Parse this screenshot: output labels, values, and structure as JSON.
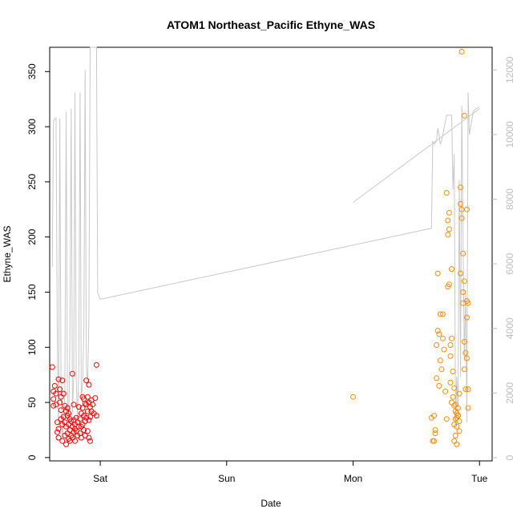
{
  "chart_data": {
    "type": "scatter",
    "title": "ATOM1 Northeast_Pacific Ethyne_WAS",
    "xlabel": "Date",
    "ylabel": "Ethyne_WAS",
    "xlim": [
      -0.4,
      3.1
    ],
    "ylim": [
      -3,
      372
    ],
    "y2lim": [
      -100,
      12700
    ],
    "x_ticks": [
      {
        "v": 0,
        "label": "Sat"
      },
      {
        "v": 1,
        "label": "Sun"
      },
      {
        "v": 2,
        "label": "Mon"
      },
      {
        "v": 3,
        "label": "Tue"
      }
    ],
    "y_ticks": [
      0,
      50,
      100,
      150,
      200,
      250,
      300,
      350
    ],
    "y2_ticks": [
      0,
      2000,
      4000,
      6000,
      8000,
      10000,
      12000
    ],
    "grid": false,
    "colors": {
      "series1": "#ff0000",
      "series2": "#ff8c00",
      "altitude": "#c8c8c8"
    },
    "series": [
      {
        "axis": "left",
        "color": "#ff0000",
        "points": [
          [
            -0.38,
            82
          ],
          [
            -0.37,
            60
          ],
          [
            -0.37,
            53
          ],
          [
            -0.37,
            47
          ],
          [
            -0.36,
            65
          ],
          [
            -0.35,
            58
          ],
          [
            -0.35,
            48
          ],
          [
            -0.34,
            32
          ],
          [
            -0.34,
            23
          ],
          [
            -0.33,
            71
          ],
          [
            -0.33,
            26
          ],
          [
            -0.33,
            18
          ],
          [
            -0.32,
            62
          ],
          [
            -0.32,
            50
          ],
          [
            -0.31,
            55
          ],
          [
            -0.31,
            43
          ],
          [
            -0.31,
            35
          ],
          [
            -0.3,
            70
          ],
          [
            -0.3,
            30
          ],
          [
            -0.3,
            15
          ],
          [
            -0.29,
            58
          ],
          [
            -0.29,
            37
          ],
          [
            -0.28,
            47
          ],
          [
            -0.28,
            32
          ],
          [
            -0.28,
            20
          ],
          [
            -0.27,
            42
          ],
          [
            -0.27,
            28
          ],
          [
            -0.27,
            12
          ],
          [
            -0.26,
            45
          ],
          [
            -0.26,
            38
          ],
          [
            -0.26,
            22
          ],
          [
            -0.25,
            40
          ],
          [
            -0.25,
            30
          ],
          [
            -0.25,
            17
          ],
          [
            -0.24,
            35
          ],
          [
            -0.24,
            25
          ],
          [
            -0.24,
            15
          ],
          [
            -0.23,
            33
          ],
          [
            -0.23,
            20
          ],
          [
            -0.22,
            76
          ],
          [
            -0.22,
            28
          ],
          [
            -0.22,
            18
          ],
          [
            -0.21,
            48
          ],
          [
            -0.21,
            34
          ],
          [
            -0.21,
            23
          ],
          [
            -0.2,
            30
          ],
          [
            -0.2,
            26
          ],
          [
            -0.2,
            15
          ],
          [
            -0.19,
            36
          ],
          [
            -0.19,
            24
          ],
          [
            -0.18,
            32
          ],
          [
            -0.18,
            20
          ],
          [
            -0.17,
            28
          ],
          [
            -0.17,
            46
          ],
          [
            -0.16,
            35
          ],
          [
            -0.16,
            22
          ],
          [
            -0.15,
            40
          ],
          [
            -0.15,
            28
          ],
          [
            -0.15,
            18
          ],
          [
            -0.14,
            55
          ],
          [
            -0.14,
            45
          ],
          [
            -0.14,
            30
          ],
          [
            -0.13,
            53
          ],
          [
            -0.13,
            38
          ],
          [
            -0.13,
            25
          ],
          [
            -0.12,
            49
          ],
          [
            -0.12,
            33
          ],
          [
            -0.12,
            20
          ],
          [
            -0.11,
            70
          ],
          [
            -0.11,
            48
          ],
          [
            -0.11,
            36
          ],
          [
            -0.1,
            55
          ],
          [
            -0.1,
            42
          ],
          [
            -0.1,
            24
          ],
          [
            -0.09,
            66
          ],
          [
            -0.09,
            50
          ],
          [
            -0.09,
            34
          ],
          [
            -0.09,
            18
          ],
          [
            -0.08,
            46
          ],
          [
            -0.08,
            37
          ],
          [
            -0.08,
            15
          ],
          [
            -0.07,
            52
          ],
          [
            -0.07,
            42
          ],
          [
            -0.06,
            48
          ],
          [
            -0.05,
            40
          ],
          [
            -0.04,
            54
          ],
          [
            -0.03,
            84
          ],
          [
            -0.03,
            38
          ]
        ]
      },
      {
        "axis": "left",
        "color": "#ff8c00",
        "points": [
          [
            2.0,
            55
          ],
          [
            2.62,
            36
          ],
          [
            2.63,
            15
          ],
          [
            2.64,
            38
          ],
          [
            2.64,
            15
          ],
          [
            2.65,
            25
          ],
          [
            2.65,
            22
          ],
          [
            2.66,
            72
          ],
          [
            2.66,
            102
          ],
          [
            2.67,
            167
          ],
          [
            2.67,
            115
          ],
          [
            2.68,
            112
          ],
          [
            2.68,
            65
          ],
          [
            2.69,
            130
          ],
          [
            2.69,
            88
          ],
          [
            2.7,
            80
          ],
          [
            2.71,
            130
          ],
          [
            2.71,
            108
          ],
          [
            2.72,
            98
          ],
          [
            2.73,
            60
          ],
          [
            2.74,
            35
          ],
          [
            2.74,
            240
          ],
          [
            2.75,
            215
          ],
          [
            2.75,
            202
          ],
          [
            2.75,
            155
          ],
          [
            2.76,
            222
          ],
          [
            2.76,
            207
          ],
          [
            2.76,
            157
          ],
          [
            2.77,
            102
          ],
          [
            2.77,
            92
          ],
          [
            2.77,
            68
          ],
          [
            2.78,
            171
          ],
          [
            2.78,
            108
          ],
          [
            2.78,
            50
          ],
          [
            2.79,
            78
          ],
          [
            2.79,
            55
          ],
          [
            2.8,
            63
          ],
          [
            2.8,
            47
          ],
          [
            2.8,
            30
          ],
          [
            2.81,
            35
          ],
          [
            2.81,
            42
          ],
          [
            2.81,
            20
          ],
          [
            2.82,
            40
          ],
          [
            2.82,
            36
          ],
          [
            2.82,
            28
          ],
          [
            2.83,
            45
          ],
          [
            2.83,
            38
          ],
          [
            2.84,
            33
          ],
          [
            2.84,
            24
          ],
          [
            2.85,
            245
          ],
          [
            2.85,
            230
          ],
          [
            2.85,
            167
          ],
          [
            2.86,
            368
          ],
          [
            2.86,
            225
          ],
          [
            2.86,
            217
          ],
          [
            2.87,
            185
          ],
          [
            2.87,
            150
          ],
          [
            2.87,
            140
          ],
          [
            2.88,
            310
          ],
          [
            2.88,
            160
          ],
          [
            2.88,
            80
          ],
          [
            2.89,
            95
          ],
          [
            2.89,
            62
          ],
          [
            2.9,
            225
          ],
          [
            2.9,
            142
          ],
          [
            2.9,
            127
          ],
          [
            2.9,
            90
          ],
          [
            2.91,
            140
          ],
          [
            2.91,
            62
          ],
          [
            2.91,
            45
          ],
          [
            2.88,
            105
          ],
          [
            2.84,
            58
          ],
          [
            2.8,
            15
          ],
          [
            2.82,
            12
          ],
          [
            2.83,
            38
          ],
          [
            2.81,
            48
          ]
        ]
      },
      {
        "axis": "right",
        "color": "#c8c8c8",
        "line": [
          [
            -0.38,
            5900
          ],
          [
            -0.37,
            10400
          ],
          [
            -0.36,
            10500
          ],
          [
            -0.35,
            10500
          ],
          [
            -0.34,
            3800
          ],
          [
            -0.33,
            900
          ],
          [
            -0.32,
            10500
          ],
          [
            -0.31,
            2000
          ],
          [
            -0.3,
            600
          ],
          [
            -0.29,
            1200
          ],
          [
            -0.28,
            2000
          ],
          [
            -0.27,
            10700
          ],
          [
            -0.26,
            2200
          ],
          [
            -0.25,
            900
          ],
          [
            -0.24,
            3600
          ],
          [
            -0.23,
            10800
          ],
          [
            -0.22,
            1400
          ],
          [
            -0.21,
            2500
          ],
          [
            -0.2,
            11300
          ],
          [
            -0.19,
            2400
          ],
          [
            -0.18,
            1200
          ],
          [
            -0.17,
            2700
          ],
          [
            -0.16,
            11300
          ],
          [
            -0.15,
            1800
          ],
          [
            -0.14,
            2300
          ],
          [
            -0.13,
            3900
          ],
          [
            -0.12,
            12000
          ],
          [
            -0.11,
            2800
          ],
          [
            -0.1,
            2300
          ],
          [
            -0.09,
            4200
          ],
          [
            -0.08,
            12700
          ],
          [
            -0.07,
            12700
          ],
          [
            -0.05,
            12700
          ],
          [
            -0.04,
            12700
          ],
          [
            -0.03,
            12700
          ],
          [
            -0.02,
            5100
          ],
          [
            0.0,
            4900
          ],
          [
            2.62,
            7100
          ],
          [
            2.63,
            9800
          ],
          [
            2.64,
            9700
          ],
          [
            2.66,
            9800
          ],
          [
            2.67,
            10200
          ],
          [
            2.68,
            10000
          ],
          [
            2.69,
            9700
          ],
          [
            2.7,
            9800
          ],
          [
            2.74,
            10600
          ],
          [
            2.75,
            10600
          ],
          [
            2.78,
            10600
          ],
          [
            2.79,
            8300
          ],
          [
            2.8,
            9400
          ],
          [
            2.81,
            1000
          ],
          [
            2.82,
            2500
          ],
          [
            2.83,
            1500
          ],
          [
            2.84,
            8600
          ],
          [
            2.85,
            2500
          ],
          [
            2.86,
            10900
          ],
          [
            2.87,
            6800
          ],
          [
            2.88,
            3000
          ],
          [
            2.89,
            5100
          ],
          [
            2.9,
            1100
          ],
          [
            2.91,
            11300
          ],
          [
            2.92,
            10000
          ],
          [
            2.95,
            10700
          ],
          [
            2.97,
            10800
          ],
          [
            3.0,
            10850
          ]
        ],
        "line2": [
          [
            2.0,
            7900
          ],
          [
            3.0,
            10800
          ]
        ]
      }
    ]
  }
}
